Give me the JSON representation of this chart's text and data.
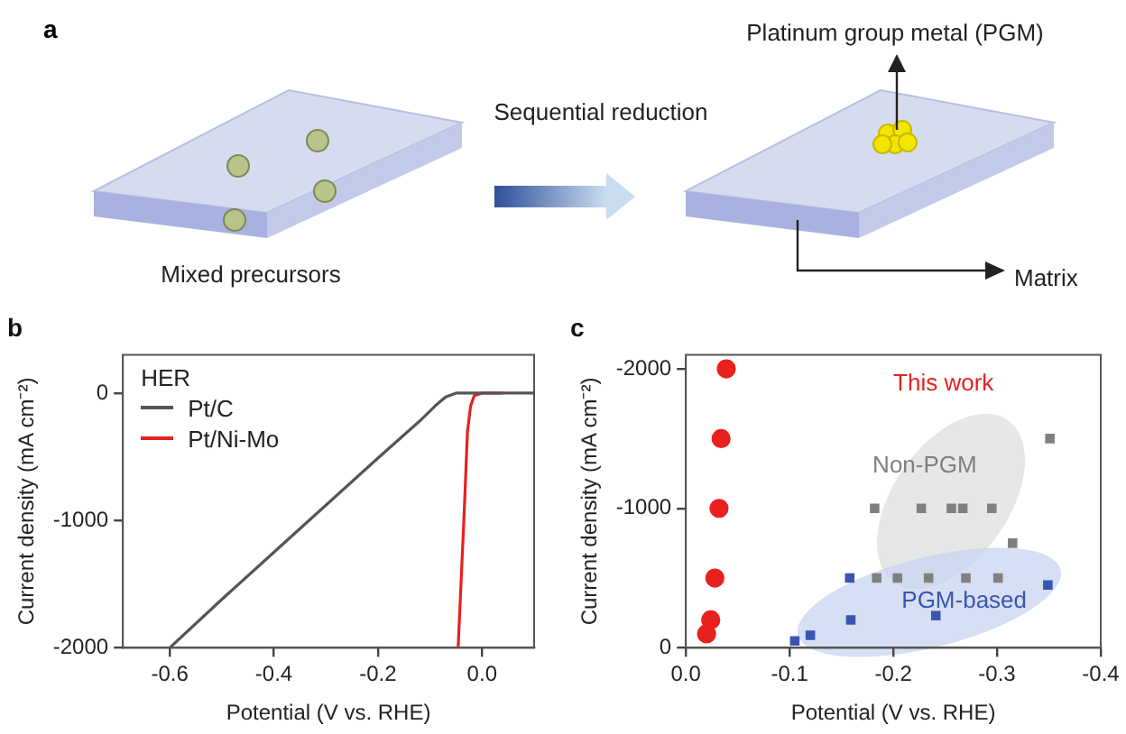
{
  "chart_data": [
    {
      "type": "other",
      "title": "a",
      "annotations": [
        "Sequential reduction",
        "Mixed precursors",
        "Platinum group metal (PGM)",
        "Matrix"
      ]
    },
    {
      "type": "line",
      "title": "b",
      "xlabel": "Potential (V vs. RHE)",
      "ylabel": "Current density (mA cm⁻²)",
      "legend_title": "HER",
      "legend": "top left",
      "marker": "none",
      "line_style": "solid",
      "grid": false,
      "xlim": [
        -0.69,
        0.1
      ],
      "xticks": [
        -0.6,
        -0.4,
        -0.2,
        {
          "value": 0,
          "label": "0.0"
        }
      ],
      "ylim": [
        -2000,
        300
      ],
      "yticks": [
        -2000,
        -1000,
        0
      ],
      "series": [
        {
          "name": "Pt/C",
          "color": "#555555",
          "x": [
            -0.6,
            -0.5,
            -0.4,
            -0.3,
            -0.2,
            -0.12,
            -0.09,
            -0.07,
            -0.05,
            0.1
          ],
          "values": [
            -2000,
            -1620,
            -1250,
            -880,
            -510,
            -220,
            -100,
            -30,
            0,
            0
          ]
        },
        {
          "name": "Pt/Ni-Mo",
          "color": "#e8211e",
          "x": [
            -0.046,
            -0.035,
            -0.028,
            -0.022,
            -0.015,
            0,
            0.04
          ],
          "values": [
            -2000,
            -1000,
            -300,
            -100,
            -20,
            0,
            0
          ]
        }
      ]
    },
    {
      "type": "scatter",
      "title": "c",
      "xlabel": "Potential (V vs. RHE)",
      "ylabel": "Current density (mA cm⁻²)",
      "grid": false,
      "xlim": [
        0,
        -0.4
      ],
      "xticks": [
        {
          "value": 0,
          "label": "0.0"
        },
        -0.1,
        -0.2,
        -0.3,
        -0.4
      ],
      "ylim": [
        0,
        -2100
      ],
      "yticks": [
        0,
        -1000,
        -2000
      ],
      "series": [
        {
          "name": "This work",
          "color": "#e8211e",
          "marker": "circle",
          "x": [
            -0.039,
            -0.034,
            -0.032,
            -0.028,
            -0.024,
            -0.02
          ],
          "values": [
            -2000,
            -1500,
            -1000,
            -500,
            -200,
            -100
          ]
        },
        {
          "name": "Non-PGM",
          "color": "#808080",
          "marker": "square",
          "x": [
            -0.351,
            -0.182,
            -0.227,
            -0.256,
            -0.267,
            -0.295,
            -0.315,
            -0.184,
            -0.204,
            -0.234,
            -0.27,
            -0.301
          ],
          "values": [
            -1500,
            -1000,
            -1000,
            -1000,
            -1000,
            -1000,
            -750,
            -500,
            -500,
            -500,
            -500,
            -500
          ]
        },
        {
          "name": "PGM-based",
          "color": "#3a55b0",
          "marker": "square",
          "x": [
            -0.158,
            -0.349,
            -0.159,
            -0.241,
            -0.12,
            -0.105
          ],
          "values": [
            -500,
            -450,
            -200,
            -230,
            -90,
            -50
          ]
        }
      ]
    }
  ]
}
